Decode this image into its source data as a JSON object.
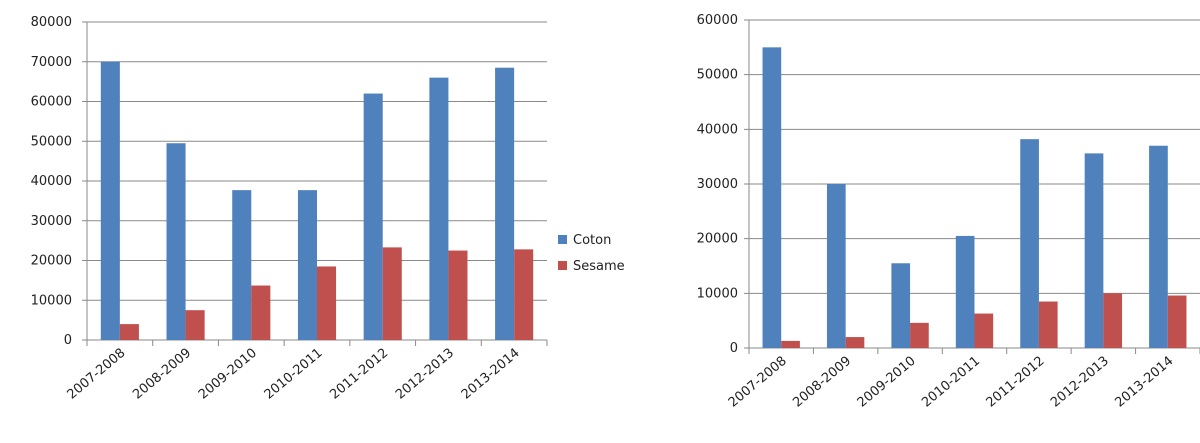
{
  "colors": {
    "coton": "#4F81BD",
    "sesame": "#C0504D",
    "grid": "#8a8a8a",
    "axis": "#8a8a8a"
  },
  "legend": {
    "items": [
      "Coton",
      "Sesame"
    ]
  },
  "chart_data": [
    {
      "type": "bar",
      "categories": [
        "2007-2008",
        "2008-2009",
        "2009-2010",
        "2010-2011",
        "2011-2012",
        "2012-2013",
        "2013-2014"
      ],
      "series": [
        {
          "name": "Coton",
          "values": [
            70000,
            49500,
            37700,
            37700,
            62000,
            66000,
            68500
          ]
        },
        {
          "name": "Sesame",
          "values": [
            4000,
            7500,
            13700,
            18500,
            23300,
            22500,
            22800
          ]
        }
      ],
      "ylim": [
        0,
        80000
      ],
      "yticks": [
        "0",
        "10000",
        "20000",
        "30000",
        "40000",
        "50000",
        "60000",
        "70000",
        "80000"
      ],
      "grid": true,
      "legend_position": "right"
    },
    {
      "type": "bar",
      "categories": [
        "2007-2008",
        "2008-2009",
        "2009-2010",
        "2010-2011",
        "2011-2012",
        "2012-2013",
        "2013-2014"
      ],
      "series": [
        {
          "name": "Coton",
          "values": [
            55000,
            30000,
            15500,
            20500,
            38200,
            35600,
            37000
          ]
        },
        {
          "name": "Sesame",
          "values": [
            1300,
            2000,
            4600,
            6300,
            8500,
            10000,
            9600
          ]
        }
      ],
      "ylim": [
        0,
        60000
      ],
      "yticks": [
        "0",
        "10000",
        "20000",
        "30000",
        "40000",
        "50000",
        "60000"
      ],
      "grid": true
    }
  ]
}
